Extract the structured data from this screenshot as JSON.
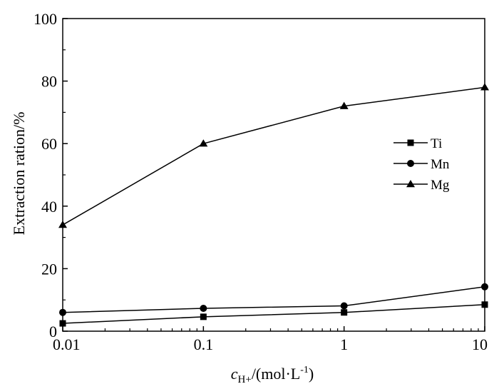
{
  "chart_data": {
    "type": "line",
    "xscale": "log",
    "x": [
      0.01,
      0.1,
      1,
      10
    ],
    "xticks": [
      "0.01",
      "0.1",
      "1",
      "10"
    ],
    "xlim": [
      0.01,
      10
    ],
    "yticks": [
      "0",
      "20",
      "40",
      "60",
      "80",
      "100"
    ],
    "ylim": [
      0,
      100
    ],
    "ylabel": "Extraction ration/%",
    "xlabel": {
      "symbol": "c",
      "subscript": "H+",
      "unit_prefix": "/(mol·L",
      "superscript": "-1",
      "unit_suffix": ")"
    },
    "grid": false,
    "legend_position": "right",
    "series": [
      {
        "name": "Ti",
        "marker": "square",
        "values": [
          2.5,
          4.6,
          6.0,
          8.5
        ]
      },
      {
        "name": "Mn",
        "marker": "circle",
        "values": [
          6.0,
          7.3,
          8.1,
          14.2
        ]
      },
      {
        "name": "Mg",
        "marker": "triangle",
        "values": [
          34.0,
          60.0,
          72.0,
          78.0
        ]
      }
    ],
    "color": "#000000"
  }
}
